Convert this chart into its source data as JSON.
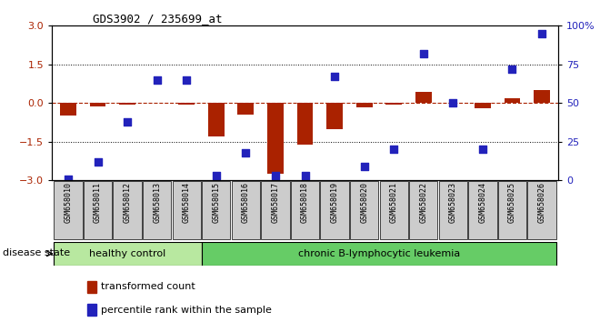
{
  "title": "GDS3902 / 235699_at",
  "samples": [
    "GSM658010",
    "GSM658011",
    "GSM658012",
    "GSM658013",
    "GSM658014",
    "GSM658015",
    "GSM658016",
    "GSM658017",
    "GSM658018",
    "GSM658019",
    "GSM658020",
    "GSM658021",
    "GSM658022",
    "GSM658023",
    "GSM658024",
    "GSM658025",
    "GSM658026"
  ],
  "red_values": [
    -0.5,
    -0.12,
    -0.07,
    0.0,
    -0.07,
    -1.3,
    -0.45,
    -2.75,
    -1.6,
    -1.0,
    -0.15,
    -0.07,
    0.45,
    0.0,
    -0.2,
    0.2,
    0.5
  ],
  "blue_values_pct": [
    1,
    12,
    38,
    65,
    65,
    3,
    18,
    3,
    3,
    67,
    9,
    20,
    82,
    50,
    20,
    72,
    95
  ],
  "healthy_count": 5,
  "ylim": [
    -3,
    3
  ],
  "right_ylim": [
    0,
    100
  ],
  "yticks_left": [
    -3,
    -1.5,
    0,
    1.5,
    3
  ],
  "yticks_right": [
    0,
    25,
    50,
    75,
    100
  ],
  "bar_color": "#aa2200",
  "dot_color": "#2222bb",
  "healthy_fill": "#b8e8a0",
  "healthy_fill2": "#cceeaa",
  "leukemia_fill": "#66cc66",
  "xticklabel_bg": "#cccccc",
  "xticklabel_border": "#888888",
  "legend_red_label": "transformed count",
  "legend_blue_label": "percentile rank within the sample",
  "disease_state_label": "disease state",
  "healthy_label": "healthy control",
  "leukemia_label": "chronic B-lymphocytic leukemia",
  "background_color": "#ffffff"
}
